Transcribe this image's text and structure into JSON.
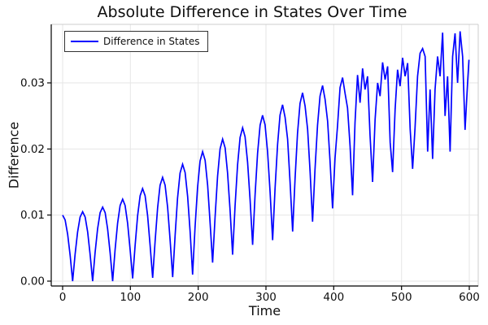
{
  "chart": {
    "title": "Absolute Difference in States Over Time",
    "xlabel": "Time",
    "ylabel": "Difference",
    "series_name": "Difference in States"
  },
  "colors": {
    "line": "#0000ff",
    "grid": "#e6e6e6",
    "border_light": "#cccccc",
    "axis": "#000000",
    "text": "#0f0f0f",
    "background": "#ffffff"
  },
  "chart_data": {
    "type": "line",
    "title": "Absolute Difference in States Over Time",
    "xlabel": "Time",
    "ylabel": "Difference",
    "grid": true,
    "legend_position": "top-left",
    "xlim": [
      -16.8,
      613.2
    ],
    "ylim": [
      -0.00074,
      0.03886
    ],
    "xticks": {
      "values": [
        0,
        100,
        200,
        300,
        400,
        500,
        600
      ],
      "labels": [
        "0",
        "100",
        "200",
        "300",
        "400",
        "500",
        "600"
      ]
    },
    "yticks": {
      "values": [
        0,
        0.01,
        0.02,
        0.03
      ],
      "labels": [
        "0.00",
        "0.01",
        "0.02",
        "0.03"
      ]
    },
    "series": [
      {
        "name": "Difference in States",
        "color": "#0000ff",
        "x": [
          0,
          3.7,
          7.4,
          11.1,
          14.8,
          18.4,
          22.1,
          25.8,
          29.5,
          33.2,
          36.9,
          40.6,
          44.3,
          47.9,
          51.6,
          55.3,
          59,
          62.7,
          66.4,
          70.1,
          73.8,
          77.4,
          81.1,
          84.8,
          88.5,
          92.2,
          95.9,
          99.6,
          103.3,
          106.9,
          110.6,
          114.3,
          118,
          121.7,
          125.4,
          129.1,
          132.8,
          136.4,
          140.1,
          143.8,
          147.5,
          151.2,
          154.9,
          158.6,
          162.3,
          165.9,
          169.6,
          173.3,
          177,
          180.7,
          184.4,
          188.1,
          191.8,
          195.4,
          199.1,
          202.8,
          206.5,
          210.2,
          213.9,
          217.6,
          221.3,
          224.9,
          228.6,
          232.3,
          236,
          239.7,
          243.4,
          247.1,
          250.8,
          254.4,
          258.1,
          261.8,
          265.5,
          269.2,
          272.9,
          276.6,
          280.3,
          283.9,
          287.6,
          291.3,
          295,
          298.7,
          302.4,
          306.1,
          309.8,
          313.4,
          317.1,
          320.8,
          324.5,
          328.2,
          331.9,
          335.6,
          339.3,
          342.9,
          346.6,
          350.3,
          354,
          357.7,
          361.4,
          365.1,
          368.8,
          372.4,
          376.1,
          379.8,
          383.5,
          387.2,
          390.9,
          394.6,
          398.3,
          401.9,
          405.6,
          409.3,
          413,
          416.7,
          420.4,
          424.1,
          427.8,
          431.4,
          435.1,
          438.8,
          442.5,
          446.2,
          449.9,
          453.6,
          457.3,
          461,
          464.7,
          468.4,
          472.1,
          475.8,
          479.5,
          483.2,
          486.8,
          490.5,
          494.2,
          497.9,
          501.6,
          505.3,
          509,
          512.7,
          516.4,
          520,
          523.7,
          527.4,
          531.1,
          534.8,
          538.5,
          542.2,
          545.9,
          549.5,
          553.2,
          556.9,
          560.6,
          564.3,
          568,
          571.7,
          575.4,
          579,
          582.7,
          586.4,
          590.1,
          593.8,
          597.5,
          599.5
        ],
        "y": [
          0.01,
          0.00924,
          0.00707,
          0.00383,
          0,
          0.00402,
          0.00742,
          0.0097,
          0.0105,
          0.0097,
          0.00742,
          0.00402,
          0,
          0.00429,
          0.00792,
          0.01035,
          0.0112,
          0.01035,
          0.00792,
          0.00429,
          0,
          0.00475,
          0.00877,
          0.01146,
          0.0124,
          0.01146,
          0.00877,
          0.00475,
          0.0004,
          0.00536,
          0.0099,
          0.01294,
          0.014,
          0.01294,
          0.0099,
          0.00536,
          0.0005,
          0.00601,
          0.0111,
          0.01451,
          0.0157,
          0.01452,
          0.01116,
          0.00614,
          0.0006,
          0.0069,
          0.01257,
          0.01637,
          0.0177,
          0.01643,
          0.01281,
          0.0074,
          0.001,
          0.00812,
          0.01415,
          0.01819,
          0.0196,
          0.01828,
          0.0145,
          0.00886,
          0.0028,
          0.00959,
          0.01585,
          0.02003,
          0.0215,
          0.02017,
          0.01637,
          0.0107,
          0.004,
          0.01135,
          0.01758,
          0.02174,
          0.0232,
          0.02185,
          0.01801,
          0.01228,
          0.0055,
          0.01301,
          0.01936,
          0.02361,
          0.0251,
          0.02366,
          0.01956,
          0.01344,
          0.0062,
          0.01405,
          0.02069,
          0.02514,
          0.0267,
          0.0248,
          0.0215,
          0.01485,
          0.0075,
          0.01554,
          0.02235,
          0.02691,
          0.0285,
          0.0265,
          0.023,
          0.01647,
          0.009,
          0.01689,
          0.02357,
          0.02803,
          0.0296,
          0.0275,
          0.0242,
          0.01812,
          0.011,
          0.01858,
          0.0235,
          0.0293,
          0.0308,
          0.0284,
          0.0262,
          0.0205,
          0.013,
          0.024,
          0.0312,
          0.027,
          0.0322,
          0.029,
          0.031,
          0.022,
          0.015,
          0.0245,
          0.03,
          0.028,
          0.0331,
          0.0305,
          0.0325,
          0.021,
          0.0165,
          0.026,
          0.032,
          0.0295,
          0.0338,
          0.031,
          0.033,
          0.023,
          0.017,
          0.0232,
          0.031,
          0.0345,
          0.0352,
          0.034,
          0.0196,
          0.029,
          0.0185,
          0.029,
          0.034,
          0.031,
          0.0376,
          0.025,
          0.031,
          0.0196,
          0.034,
          0.0375,
          0.03,
          0.0378,
          0.034,
          0.0229,
          0.03,
          0.0335
        ]
      }
    ]
  }
}
